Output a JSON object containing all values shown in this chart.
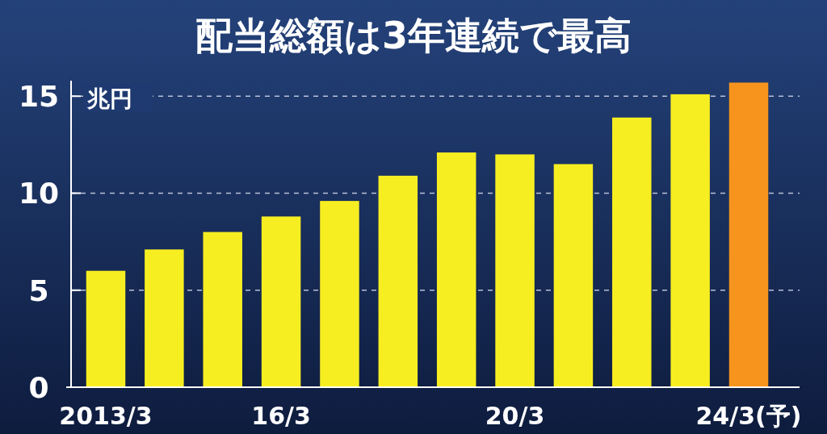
{
  "chart_data": {
    "type": "bar",
    "title": "配当総額は3年連続で最高",
    "ylabel": "兆円",
    "categories": [
      "2013/3",
      null,
      null,
      "16/3",
      null,
      null,
      null,
      "20/3",
      null,
      null,
      null,
      "24/3(予)"
    ],
    "values": [
      6.0,
      7.1,
      8.0,
      8.8,
      9.6,
      10.9,
      12.1,
      12.0,
      11.5,
      13.9,
      15.1,
      15.7
    ],
    "colors": [
      "#f7ee22",
      "#f7ee22",
      "#f7ee22",
      "#f7ee22",
      "#f7ee22",
      "#f7ee22",
      "#f7ee22",
      "#f7ee22",
      "#f7ee22",
      "#f7ee22",
      "#f7ee22",
      "#f7941d"
    ],
    "ylim": [
      0,
      15.8
    ],
    "yticks": [
      0,
      5,
      10,
      15
    ],
    "grid": "y"
  }
}
